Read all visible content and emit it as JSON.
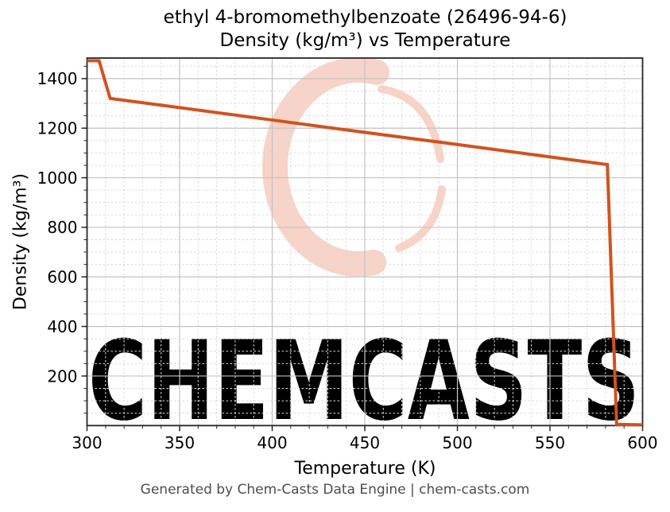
{
  "figure": {
    "title_line1": "ethyl 4-bromomethylbenzoate (26496-94-6)",
    "title_line2": "Density (kg/m³) vs Temperature",
    "footer": "Generated by Chem-Casts Data Engine | chem-casts.com",
    "watermark_text": "CHEMCASTS"
  },
  "chart_data": {
    "type": "line",
    "title": "ethyl 4-bromomethylbenzoate (26496-94-6) Density (kg/m³) vs Temperature",
    "xlabel": "Temperature (K)",
    "ylabel": "Density (kg/m³)",
    "xlim": [
      300,
      600
    ],
    "ylim": [
      0,
      1483
    ],
    "xticks": [
      300,
      350,
      400,
      450,
      500,
      550,
      600
    ],
    "yticks": [
      200,
      400,
      600,
      800,
      1000,
      1200,
      1400
    ],
    "x_minor_step": 10,
    "y_minor_step": 50,
    "grid": true,
    "legend_position": "none",
    "series": [
      {
        "name": "Density",
        "x": [
          300,
          306.5,
          312.5,
          350,
          400,
          450,
          500,
          550,
          581,
          586,
          600
        ],
        "y": [
          1472,
          1472,
          1320,
          1283,
          1233,
          1183,
          1134,
          1084,
          1053,
          5,
          3
        ]
      }
    ],
    "colors": {
      "line": "#d2521d",
      "grid_major": "#c3c3c3",
      "grid_minor": "#dcdcdc",
      "spine": "#262626",
      "watermark": "#f8d3c7",
      "footer_text": "#4d4d4d"
    }
  }
}
